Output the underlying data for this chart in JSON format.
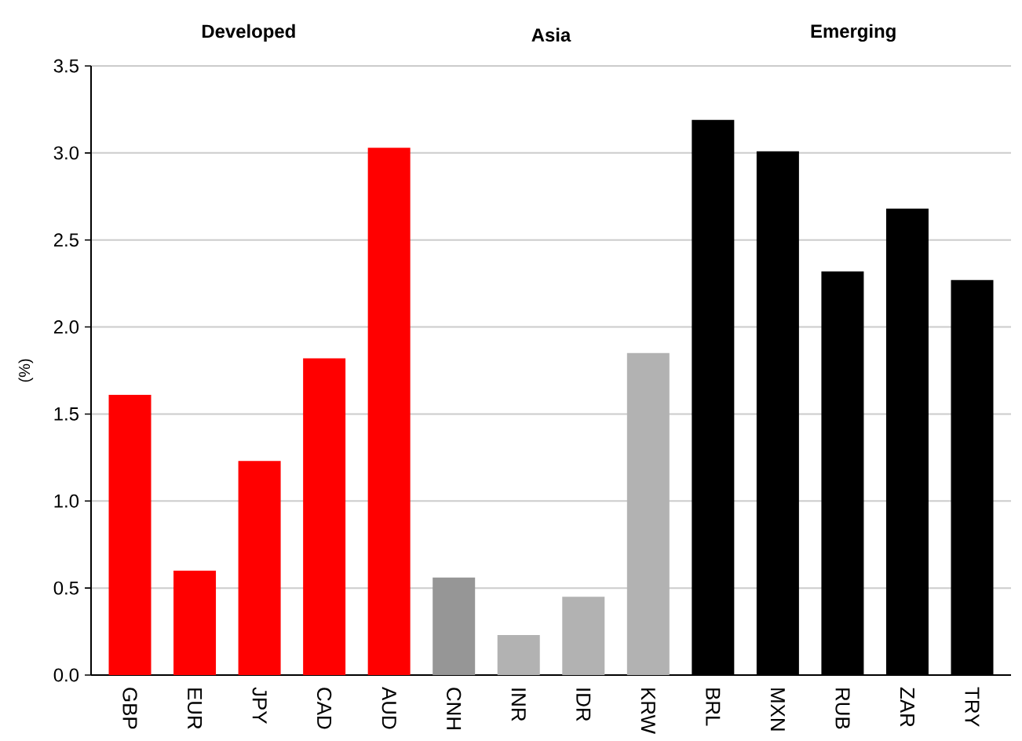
{
  "chart_data": {
    "type": "bar",
    "ylabel": "(%)",
    "categories": [
      "GBP",
      "EUR",
      "JPY",
      "CAD",
      "AUD",
      "CNH",
      "INR",
      "IDR",
      "KRW",
      "BRL",
      "MXN",
      "RUB",
      "ZAR",
      "TRY"
    ],
    "values": [
      1.61,
      0.6,
      1.23,
      1.82,
      3.03,
      0.56,
      0.23,
      0.45,
      1.85,
      3.19,
      3.01,
      2.32,
      2.68,
      2.27
    ],
    "colors": [
      "#ff0000",
      "#ff0000",
      "#ff0000",
      "#ff0000",
      "#ff0000",
      "#969696",
      "#b2b2b2",
      "#b2b2b2",
      "#b2b2b2",
      "#000000",
      "#000000",
      "#000000",
      "#000000",
      "#000000"
    ],
    "ylim": [
      0,
      3.5
    ],
    "yticks": [
      {
        "value": 0,
        "label": "0.0"
      },
      {
        "value": 0.5,
        "label": "0.5"
      },
      {
        "value": 1,
        "label": "1.0"
      },
      {
        "value": 1.5,
        "label": "1.5"
      },
      {
        "value": 2,
        "label": "2.0"
      },
      {
        "value": 2.5,
        "label": "2.5"
      },
      {
        "value": 3,
        "label": "3.0"
      },
      {
        "value": 3.5,
        "label": "3.5"
      }
    ],
    "grid": "y",
    "annotations": [
      "Developed",
      "Asia",
      "Emerging"
    ]
  }
}
